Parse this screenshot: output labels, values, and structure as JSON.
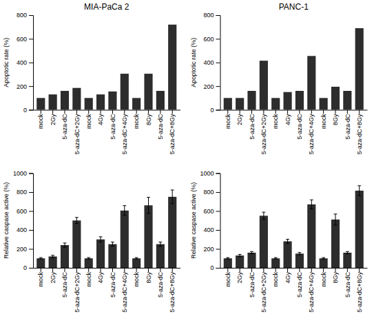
{
  "chart_data": [
    {
      "type": "bar",
      "title": "MIA-PaCa 2",
      "y_label": "Apoptotic rate (%)",
      "color": "#2d2d2d",
      "categories": [
        "mock",
        "2Gy",
        "5-aza-dC",
        "5-aza-dC+2Gy",
        "mock",
        "4Gy",
        "5-aza-dC",
        "5-aza-dC+4Gy",
        "mock",
        "8Gy",
        "5-aza-dC",
        "5-aza-dC+8Gy"
      ],
      "values": [
        100,
        130,
        160,
        185,
        100,
        130,
        155,
        305,
        100,
        305,
        160,
        720
      ],
      "ylim": [
        0,
        800
      ],
      "yticks": [
        0,
        200,
        400,
        600,
        800
      ]
    },
    {
      "type": "bar",
      "title": "PANC-1",
      "y_label": "Apoptotic rate (%)",
      "color": "#2d2d2d",
      "categories": [
        "mock",
        "2Gy",
        "5-aza-dC",
        "5-aza-dC+2Gy",
        "mock",
        "4Gy",
        "5-aza-dC",
        "5-aza-dC+4Gy",
        "mock",
        "8Gy",
        "5-aza-dC",
        "5-aza-dC+8Gy"
      ],
      "values": [
        100,
        100,
        160,
        415,
        100,
        150,
        160,
        455,
        100,
        195,
        160,
        690
      ],
      "ylim": [
        0,
        800
      ],
      "yticks": [
        0,
        200,
        400,
        600,
        800
      ]
    },
    {
      "type": "bar",
      "y_label": "Relative caspase active (%)",
      "color": "#2d2d2d",
      "categories": [
        "mock",
        "2Gy",
        "5-aza-dC",
        "5-aza-dC+2Gy",
        "mock",
        "4Gy",
        "5-aza-dC",
        "5-aza-dC+4Gy",
        "mock",
        "8Gy",
        "5-aza-dC",
        "5-aza-dC+8Gy"
      ],
      "values": [
        100,
        120,
        240,
        500,
        100,
        300,
        250,
        605,
        100,
        660,
        250,
        750
      ],
      "errors": [
        8,
        12,
        22,
        32,
        8,
        28,
        22,
        52,
        8,
        85,
        22,
        72
      ],
      "ylim": [
        0,
        1000
      ],
      "yticks": [
        0,
        200,
        400,
        600,
        800,
        1000
      ]
    },
    {
      "type": "bar",
      "y_label": "Relative caspase active (%)",
      "color": "#2d2d2d",
      "categories": [
        "mock",
        "2Gy",
        "5-aza-dC",
        "5-aza-dC+2Gy",
        "mock",
        "4Gy",
        "5-aza-dC",
        "5-aza-dC+4Gy",
        "mock",
        "8Gy",
        "5-aza-dC",
        "5-aza-dC+8Gy"
      ],
      "values": [
        100,
        130,
        160,
        550,
        100,
        280,
        150,
        670,
        100,
        510,
        160,
        815
      ],
      "errors": [
        8,
        12,
        12,
        38,
        8,
        22,
        12,
        48,
        8,
        58,
        12,
        52
      ],
      "ylim": [
        0,
        1000
      ],
      "yticks": [
        0,
        200,
        400,
        600,
        800,
        1000
      ]
    }
  ]
}
